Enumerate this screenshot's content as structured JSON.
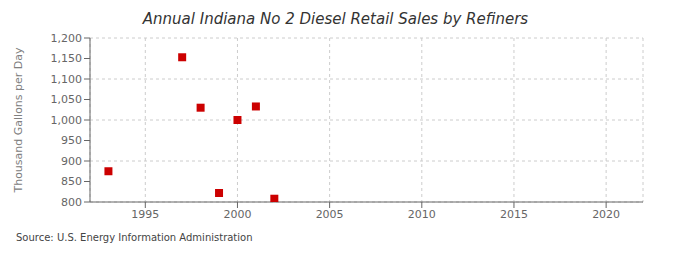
{
  "chart_data": {
    "type": "scatter",
    "title": "Annual Indiana No 2 Diesel Retail Sales by Refiners",
    "ylabel": "Thousand Gallons per Day",
    "annotations": [
      "Source: U.S. Energy Information Administration"
    ],
    "x": [
      1993,
      1997,
      1998,
      1999,
      2000,
      2001,
      2002
    ],
    "values": [
      875,
      1153,
      1030,
      822,
      1000,
      1033,
      808
    ],
    "color": "#cc0000",
    "marker": "square",
    "xlim": [
      1992,
      2022
    ],
    "ylim": [
      800,
      1200
    ],
    "xticks": [
      1995,
      2000,
      2005,
      2010,
      2015,
      2020
    ],
    "yticks": [
      800,
      850,
      900,
      950,
      {
        "value": 1000,
        "label": "1,000"
      },
      {
        "value": 1050,
        "label": "1,050"
      },
      {
        "value": 1100,
        "label": "1,100"
      },
      {
        "value": 1150,
        "label": "1,150"
      },
      {
        "value": 1200,
        "label": "1,200"
      }
    ],
    "grid": true
  }
}
